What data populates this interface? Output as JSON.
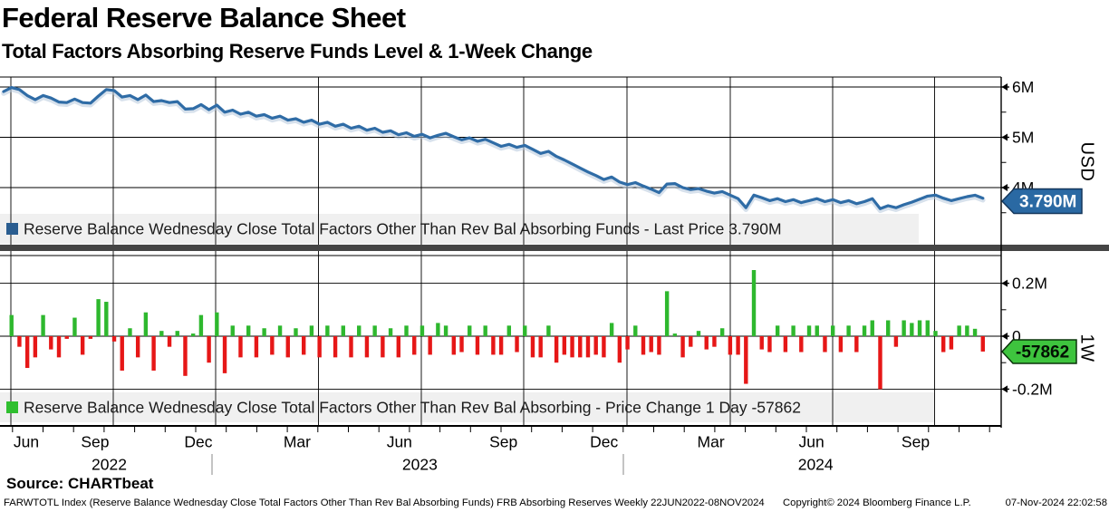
{
  "header": {
    "title": "Federal Reserve Balance Sheet",
    "subtitle": "Total Factors Absorbing Reserve Funds Level & 1-Week Change"
  },
  "source_label": "Source: CHARTbeat",
  "footer": {
    "index_info": "FARWTOTL Index (Reserve Balance Wednesday Close Total Factors Other Than Rev Bal Absorbing Funds) FRB Absorbing Reserves  Weekly 22JUN2022-08NOV2024",
    "copyright": "Copyright© 2024 Bloomberg Finance L.P.",
    "timestamp": "07-Nov-2024 22:02:58"
  },
  "top_panel": {
    "legend_label": "Reserve Balance Wednesday Close Total Factors Other Than Rev Bal Absorbing Funds - Last Price 3.790M",
    "badge_label": "3.790M",
    "axis_title": "USD",
    "y_axis": {
      "ticks": [
        {
          "value": 6,
          "label": "6M"
        },
        {
          "value": 5,
          "label": "5M"
        },
        {
          "value": 4,
          "label": "4M"
        }
      ],
      "minor_ticks": [
        5.5,
        4.5,
        3.5
      ]
    }
  },
  "bottom_panel": {
    "legend_label": "Reserve Balance Wednesday Close Total Factors Other Than Rev Bal Absorbing - Price Change 1 Day -57862",
    "badge_label": "-57862",
    "axis_title": "1W",
    "y_axis": {
      "ticks": [
        {
          "value": 0.2,
          "label": "0.2M"
        },
        {
          "value": 0,
          "label": "0"
        },
        {
          "value": -0.2,
          "label": "-0.2M"
        }
      ],
      "minor_ticks": [
        0.1,
        -0.1
      ]
    }
  },
  "x_axis": {
    "month_ticks": [
      {
        "label": "Jun",
        "week": 2.87
      },
      {
        "label": "Sep",
        "week": 11.58
      },
      {
        "label": "Dec",
        "week": 24.66
      },
      {
        "label": "Mar",
        "week": 37.16
      },
      {
        "label": "Jun",
        "week": 50.11
      },
      {
        "label": "Sep",
        "week": 63.3
      },
      {
        "label": "Dec",
        "week": 76.03
      },
      {
        "label": "Mar",
        "week": 89.56
      },
      {
        "label": "Jun",
        "week": 102.29
      },
      {
        "label": "Sep",
        "week": 115.48
      }
    ],
    "year_labels": [
      {
        "label": "2022",
        "week": 13.37
      },
      {
        "label": "2023",
        "week": 52.71
      },
      {
        "label": "2024",
        "week": 102.82
      }
    ]
  },
  "colors": {
    "line_blue": "#2f6ca6",
    "line_halo": "#b6c8dc",
    "legend_blue": "#2a5d90",
    "legend_green": "#2fbf2f",
    "bar_green": "#2eb82e",
    "bar_red": "#e61717",
    "badge_blue_fill": "#2a69a3",
    "badge_blue_stroke": "#14375c",
    "badge_green_fill": "#3ec43e",
    "badge_green_stroke": "#0a330a",
    "strip_bg": "#f0f0f0",
    "divider": "#454545",
    "grid": "#000000"
  },
  "chart_data": [
    {
      "type": "line",
      "series_name": "Reserve Balance Wednesday Close Total Factors Other Than Rev Bal Absorbing Funds",
      "unit": "USD, M = millions",
      "period": "Weekly",
      "date_range": "22JUN2022-08NOV2024",
      "last_price_M": 3.79,
      "ylim_M": [
        3.45,
        6.2
      ],
      "y_ticks_M": [
        4,
        5,
        6
      ],
      "values_M": [
        5.91,
        5.99,
        5.95,
        5.83,
        5.75,
        5.83,
        5.78,
        5.7,
        5.69,
        5.76,
        5.69,
        5.68,
        5.82,
        5.95,
        5.93,
        5.8,
        5.83,
        5.75,
        5.84,
        5.71,
        5.73,
        5.69,
        5.71,
        5.56,
        5.57,
        5.65,
        5.55,
        5.64,
        5.5,
        5.54,
        5.46,
        5.5,
        5.42,
        5.45,
        5.38,
        5.42,
        5.34,
        5.37,
        5.3,
        5.34,
        5.26,
        5.3,
        5.22,
        5.26,
        5.18,
        5.22,
        5.14,
        5.18,
        5.1,
        5.13,
        5.05,
        5.09,
        5.02,
        5.06,
        4.99,
        5.04,
        5.08,
        5.01,
        4.95,
        4.99,
        4.92,
        4.96,
        4.89,
        4.82,
        4.86,
        4.8,
        4.84,
        4.76,
        4.68,
        4.72,
        4.62,
        4.55,
        4.47,
        4.39,
        4.31,
        4.24,
        4.16,
        4.21,
        4.11,
        4.06,
        4.1,
        4.03,
        3.97,
        3.9,
        4.07,
        4.08,
        4.0,
        3.96,
        3.98,
        3.93,
        3.89,
        3.92,
        3.85,
        3.78,
        3.6,
        3.85,
        3.8,
        3.74,
        3.78,
        3.72,
        3.76,
        3.7,
        3.74,
        3.78,
        3.72,
        3.76,
        3.7,
        3.74,
        3.68,
        3.72,
        3.78,
        3.58,
        3.64,
        3.6,
        3.66,
        3.71,
        3.77,
        3.83,
        3.85,
        3.79,
        3.74,
        3.78,
        3.82,
        3.848,
        3.79
      ]
    },
    {
      "type": "bar",
      "series_name": "Reserve Balance Wednesday Close Total Factors Other Than Rev Bal Absorbing - Price Change 1 Day",
      "unit": "USD, M = millions",
      "period": "Weekly 1-week change",
      "last_change": -57862,
      "ylim_M": [
        -0.21,
        0.3
      ],
      "y_ticks_M": [
        -0.2,
        0,
        0.2
      ],
      "values_M": [
        0.08,
        -0.04,
        -0.12,
        -0.08,
        0.08,
        -0.05,
        -0.08,
        -0.01,
        0.07,
        -0.07,
        -0.01,
        0.14,
        0.13,
        -0.02,
        -0.13,
        0.03,
        -0.08,
        0.09,
        -0.13,
        0.02,
        -0.04,
        0.02,
        -0.15,
        0.01,
        0.08,
        -0.1,
        0.09,
        -0.14,
        0.04,
        -0.08,
        0.04,
        -0.08,
        0.03,
        -0.07,
        0.04,
        -0.08,
        0.03,
        -0.07,
        0.04,
        -0.08,
        0.04,
        -0.08,
        0.04,
        -0.08,
        0.04,
        -0.08,
        0.04,
        -0.08,
        0.03,
        -0.08,
        0.04,
        -0.07,
        0.04,
        -0.07,
        0.05,
        0.04,
        -0.07,
        -0.06,
        0.04,
        -0.07,
        0.04,
        -0.07,
        -0.07,
        0.04,
        -0.06,
        0.04,
        -0.08,
        -0.08,
        0.04,
        -0.1,
        -0.07,
        -0.08,
        -0.08,
        -0.08,
        -0.07,
        -0.08,
        0.05,
        -0.1,
        -0.05,
        0.04,
        -0.07,
        -0.06,
        -0.07,
        0.17,
        0.01,
        -0.08,
        -0.04,
        0.02,
        -0.05,
        -0.04,
        0.03,
        -0.07,
        -0.07,
        -0.18,
        0.25,
        -0.05,
        -0.06,
        0.04,
        -0.06,
        0.04,
        -0.06,
        0.04,
        0.04,
        -0.06,
        0.04,
        -0.06,
        0.04,
        -0.06,
        0.04,
        0.06,
        -0.2,
        0.06,
        -0.04,
        0.06,
        0.05,
        0.06,
        0.06,
        0.02,
        -0.06,
        -0.05,
        0.04,
        0.04,
        0.028,
        -0.058
      ]
    }
  ]
}
